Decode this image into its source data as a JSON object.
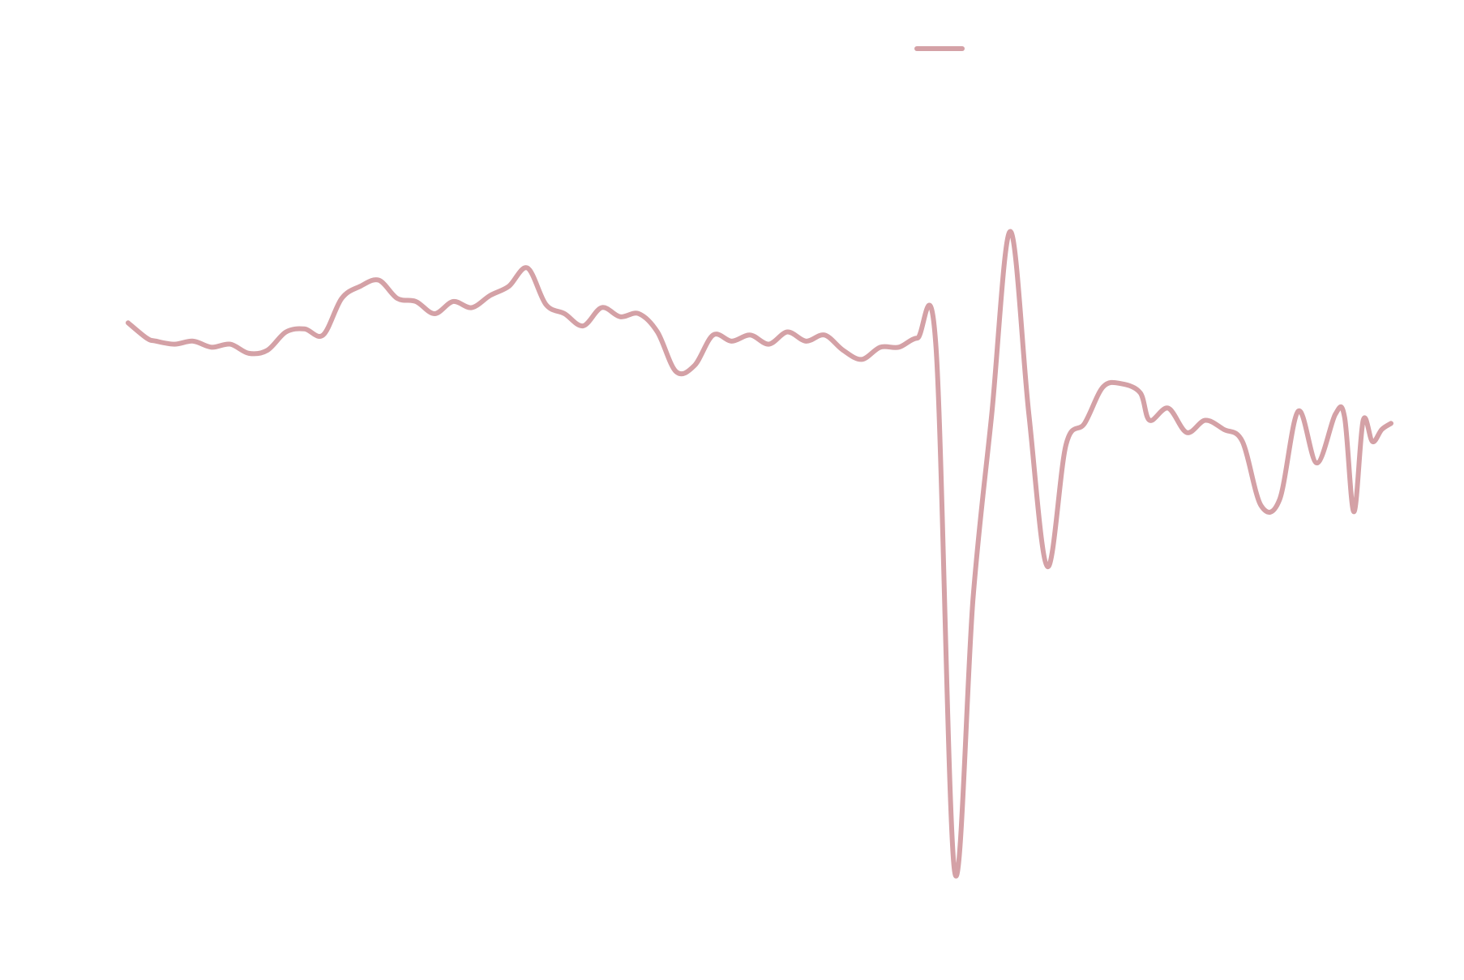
{
  "chart_data": {
    "type": "line",
    "title": "",
    "xlabel": "",
    "ylabel": "",
    "grid": false,
    "legend": {
      "placement": "top-right",
      "entries": [
        {
          "name": ""
        }
      ]
    },
    "xlim": [
      0,
      136
    ],
    "ylim": [
      -20,
      9
    ],
    "series": [
      {
        "name": "",
        "color": "#d4a1a6",
        "x": [
          0,
          2,
          3,
          5,
          7,
          9,
          11,
          13,
          15,
          17,
          19,
          21,
          23,
          25,
          27,
          29,
          31,
          33,
          35,
          37,
          39,
          41,
          43,
          45,
          47,
          49,
          51,
          53,
          55,
          57,
          59,
          61,
          63,
          65,
          67,
          69,
          71,
          73,
          75,
          77,
          79,
          81,
          83,
          85,
          87,
          89,
          91,
          93,
          95,
          97,
          99,
          101,
          103,
          105,
          107,
          109,
          110,
          112,
          114,
          116,
          118,
          120,
          122,
          124,
          126,
          128,
          130,
          131,
          132,
          133,
          134,
          135,
          136
        ],
        "y": [
          0.0,
          -0.5,
          -0.6,
          -0.7,
          -0.6,
          -0.8,
          -0.7,
          -1.0,
          -0.9,
          -0.3,
          -0.2,
          -0.4,
          0.8,
          1.2,
          1.4,
          0.8,
          0.7,
          0.3,
          0.7,
          0.5,
          0.9,
          1.2,
          1.8,
          0.6,
          0.3,
          -0.1,
          0.5,
          0.2,
          0.3,
          -0.3,
          -1.6,
          -1.4,
          -0.4,
          -0.6,
          -0.4,
          -0.7,
          -0.3,
          -0.6,
          -0.4,
          -0.9,
          -1.2,
          -0.8,
          -0.8,
          -0.5,
          -0.8,
          -18.0,
          -9.0,
          -3.0,
          3.0,
          -3.0,
          -8.0,
          -4.0,
          -3.3,
          -2.1,
          -2.0,
          -2.3,
          -3.2,
          -2.8,
          -3.6,
          -3.2,
          -3.5,
          -3.9,
          -6.0,
          -5.8,
          -2.9,
          -4.6,
          -3.0,
          -3.1,
          -6.2,
          -3.2,
          -3.9,
          -3.5,
          -3.3
        ]
      }
    ]
  }
}
